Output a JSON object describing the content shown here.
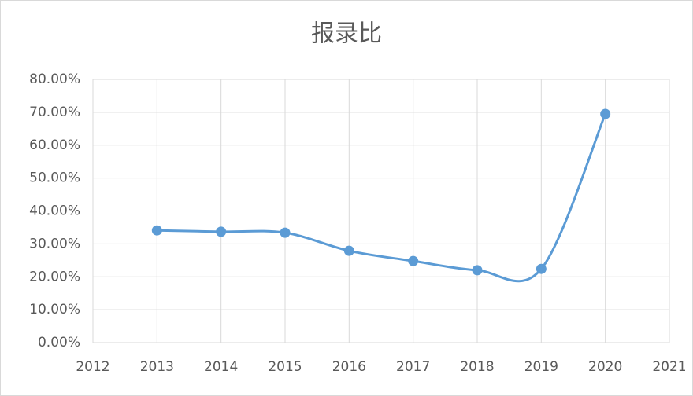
{
  "chart_data": {
    "type": "line",
    "title": "报录比",
    "x": [
      2013,
      2014,
      2015,
      2016,
      2017,
      2018,
      2019,
      2020
    ],
    "series": [
      {
        "name": "报录比",
        "color": "#5b9bd5",
        "values": [
          34.1,
          33.7,
          33.4,
          27.9,
          24.8,
          22.0,
          22.4,
          69.5
        ]
      }
    ],
    "xlim": [
      2012,
      2021
    ],
    "xticks": [
      2012,
      2013,
      2014,
      2015,
      2016,
      2017,
      2018,
      2019,
      2020,
      2021
    ],
    "ylim": [
      0,
      80
    ],
    "yticks": [
      {
        "value": 0,
        "label": "0.00%"
      },
      {
        "value": 10,
        "label": "10.00%"
      },
      {
        "value": 20,
        "label": "20.00%"
      },
      {
        "value": 30,
        "label": "30.00%"
      },
      {
        "value": 40,
        "label": "40.00%"
      },
      {
        "value": 50,
        "label": "50.00%"
      },
      {
        "value": 60,
        "label": "60.00%"
      },
      {
        "value": 70,
        "label": "70.00%"
      },
      {
        "value": 80,
        "label": "80.00%"
      }
    ],
    "grid": true,
    "smooth": true
  }
}
